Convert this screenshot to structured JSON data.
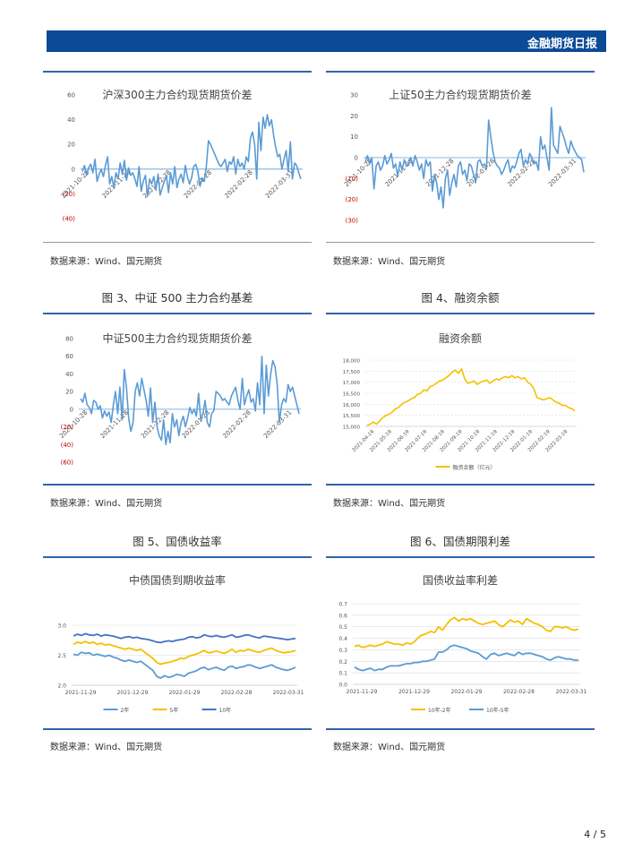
{
  "header": {
    "title": "金融期货日报"
  },
  "page_number": "4 / 5",
  "source_text": "数据来源：Wind、国元期货",
  "captions": {
    "fig3": "图 3、中证 500 主力合约基差",
    "fig4": "图 4、融资余额",
    "fig5": "图 5、国债收益率",
    "fig6": "图 6、国债期限利差"
  },
  "chart_data": [
    {
      "id": "c1",
      "type": "line",
      "title": "沪深300主力合约现货期货价差",
      "yticks": [
        "60",
        "40",
        "20",
        "0",
        "(20)",
        "(40)"
      ],
      "ylim": [
        -40,
        60
      ],
      "xticks": [
        "2021-10-29",
        "2021-11-28",
        "2021-12-28",
        "2022-01-28",
        "2022-02-28",
        "2022-03-31"
      ],
      "color": "#5b9bd5",
      "series": [
        {
          "values": [
            -2,
            3,
            -5,
            1,
            4,
            -3,
            8,
            -10,
            -4,
            0,
            -6,
            3,
            10,
            -12,
            -6,
            -15,
            -3,
            -8,
            5,
            -4,
            7,
            -9,
            1,
            -5,
            -3,
            -8,
            -14,
            2,
            -18,
            -10,
            -5,
            -22,
            -8,
            -12,
            -6,
            -17,
            -4,
            -21,
            -15,
            -10,
            -5,
            -19,
            -3,
            -12,
            2,
            -15,
            -8,
            -4,
            -11,
            3,
            -6,
            -12,
            -7,
            2,
            4,
            -2,
            -14,
            -7,
            -10,
            2,
            23,
            20,
            16,
            12,
            8,
            4,
            2,
            5,
            8,
            -2,
            6,
            4,
            10,
            -4,
            8,
            2,
            5,
            0,
            10,
            6,
            25,
            30,
            20,
            -8,
            38,
            15,
            42,
            33,
            44,
            35,
            40,
            28,
            18,
            10,
            12,
            0,
            8,
            15,
            -2,
            22,
            -8,
            5,
            3,
            -3,
            -8
          ]
        }
      ]
    },
    {
      "id": "c2",
      "type": "line",
      "title": "上证50主力合约现货期货价差",
      "yticks": [
        "30",
        "20",
        "10",
        "0",
        "(10)",
        "(20)",
        "(30)"
      ],
      "ylim": [
        -30,
        30
      ],
      "xticks": [
        "2021-10-29",
        "2021-11-28",
        "2021-12-28",
        "2022-01-28",
        "2022-02-28",
        "2022-03-31"
      ],
      "color": "#5b9bd5",
      "series": [
        {
          "values": [
            -2,
            1,
            -3,
            0,
            -15,
            -4,
            -2,
            -6,
            -4,
            1,
            -3,
            -1,
            2,
            -5,
            -3,
            -9,
            -2,
            -6,
            -1,
            -4,
            -3,
            0,
            -4,
            1,
            -2,
            -6,
            -3,
            -10,
            -1,
            -4,
            -2,
            -16,
            -8,
            -12,
            -20,
            -14,
            -24,
            -10,
            -6,
            -18,
            -12,
            -8,
            -14,
            -4,
            -2,
            -8,
            -6,
            -11,
            -3,
            -4,
            -8,
            -12,
            -2,
            -1,
            -4,
            -3,
            -5,
            18,
            10,
            3,
            -2,
            -4,
            -5,
            -8,
            -6,
            -3,
            -1,
            -7,
            -4,
            -5,
            -2,
            2,
            4,
            -4,
            -1,
            -3,
            2,
            0,
            -3,
            -2,
            -6,
            10,
            4,
            6,
            0,
            -6,
            24,
            6,
            4,
            2,
            15,
            12,
            9,
            5,
            2,
            8,
            5,
            3,
            1,
            0,
            -1,
            -7
          ]
        }
      ]
    },
    {
      "id": "c3",
      "type": "line",
      "title": "中证500主力合约现货期货价差",
      "yticks": [
        "80",
        "60",
        "40",
        "20",
        "0",
        "(20)",
        "(40)",
        "(60)"
      ],
      "ylim": [
        -60,
        80
      ],
      "xticks": [
        "2021-10-28",
        "2021-11-28",
        "2021-12-28",
        "2022-01-28",
        "2022-02-28",
        "2022-03-31"
      ],
      "color": "#5b9bd5",
      "series": [
        {
          "values": [
            12,
            8,
            18,
            5,
            2,
            -5,
            10,
            8,
            0,
            4,
            -10,
            -2,
            -8,
            -3,
            -15,
            5,
            20,
            -5,
            25,
            -12,
            45,
            25,
            -10,
            -25,
            -15,
            20,
            30,
            15,
            35,
            22,
            10,
            -8,
            24,
            -15,
            8,
            -20,
            -30,
            -35,
            -12,
            -40,
            -25,
            -38,
            -5,
            -20,
            -12,
            -30,
            -15,
            -8,
            -20,
            -10,
            2,
            -5,
            0,
            -8,
            18,
            -12,
            -5,
            10,
            -15,
            -20,
            -5,
            -2,
            20,
            18,
            15,
            10,
            12,
            8,
            5,
            15,
            20,
            25,
            10,
            0,
            35,
            5,
            15,
            22,
            8,
            12,
            -2,
            30,
            5,
            60,
            -5,
            50,
            15,
            40,
            55,
            48,
            28,
            -15,
            5,
            12,
            8,
            28,
            20,
            25,
            15,
            5,
            -5
          ]
        }
      ]
    },
    {
      "id": "c4",
      "type": "line",
      "title": "融资余额",
      "yticks": [
        "18,000",
        "17,500",
        "17,000",
        "16,500",
        "16,000",
        "15,500",
        "15,000"
      ],
      "ylim": [
        15000,
        18000
      ],
      "xticks": [
        "2021-04-19",
        "2021-05-19",
        "2021-06-19",
        "2021-07-19",
        "2021-08-19",
        "2021-09-19",
        "2021-10-19",
        "2021-11-19",
        "2021-12-19",
        "2022-01-19",
        "2022-02-19",
        "2022-03-19"
      ],
      "color": "#f5c000",
      "legend": "融资余额（亿元）",
      "series": [
        {
          "name": "融资余额（亿元）",
          "values": [
            15050,
            15100,
            15200,
            15100,
            15250,
            15400,
            15500,
            15550,
            15650,
            15800,
            15850,
            16000,
            16100,
            16150,
            16250,
            16300,
            16450,
            16500,
            16650,
            16600,
            16800,
            16850,
            16950,
            17050,
            17100,
            17200,
            17300,
            17450,
            17550,
            17400,
            17600,
            17150,
            16950,
            17000,
            17050,
            16900,
            17000,
            17050,
            17100,
            16950,
            17050,
            17150,
            17100,
            17200,
            17250,
            17200,
            17300,
            17200,
            17250,
            17150,
            17200,
            17000,
            16900,
            16700,
            16300,
            16250,
            16200,
            16250,
            16300,
            16200,
            16100,
            16050,
            15950,
            15950,
            15850,
            15800,
            15700
          ]
        }
      ]
    },
    {
      "id": "c5",
      "type": "line",
      "title": "中债国债到期收益率",
      "yticks": [
        "3.0",
        "2.5",
        "2.0"
      ],
      "ylim": [
        2.0,
        3.0
      ],
      "xticks": [
        "2021-11-29",
        "2021-12-29",
        "2022-01-29",
        "2022-02-28",
        "2022-03-31"
      ],
      "legend_names": [
        "2年",
        "5年",
        "10年"
      ],
      "series": [
        {
          "name": "2年",
          "color": "#5b9bd5",
          "values": [
            2.52,
            2.5,
            2.55,
            2.53,
            2.54,
            2.5,
            2.52,
            2.5,
            2.48,
            2.5,
            2.47,
            2.45,
            2.42,
            2.4,
            2.42,
            2.4,
            2.38,
            2.4,
            2.35,
            2.3,
            2.25,
            2.15,
            2.12,
            2.16,
            2.13,
            2.15,
            2.18,
            2.17,
            2.15,
            2.2,
            2.22,
            2.24,
            2.28,
            2.3,
            2.26,
            2.28,
            2.3,
            2.27,
            2.25,
            2.3,
            2.32,
            2.28,
            2.3,
            2.31,
            2.34,
            2.33,
            2.3,
            2.28,
            2.3,
            2.32,
            2.34,
            2.3,
            2.28,
            2.26,
            2.25,
            2.27,
            2.3
          ]
        },
        {
          "name": "5年",
          "color": "#f5c000",
          "values": [
            2.68,
            2.72,
            2.7,
            2.73,
            2.7,
            2.72,
            2.68,
            2.7,
            2.67,
            2.68,
            2.66,
            2.64,
            2.62,
            2.6,
            2.62,
            2.6,
            2.58,
            2.6,
            2.55,
            2.5,
            2.45,
            2.38,
            2.35,
            2.37,
            2.38,
            2.4,
            2.42,
            2.45,
            2.44,
            2.48,
            2.5,
            2.52,
            2.55,
            2.58,
            2.54,
            2.55,
            2.57,
            2.55,
            2.53,
            2.56,
            2.6,
            2.55,
            2.58,
            2.57,
            2.6,
            2.58,
            2.56,
            2.55,
            2.58,
            2.6,
            2.62,
            2.58,
            2.56,
            2.54,
            2.55,
            2.56,
            2.58
          ]
        },
        {
          "name": "10年",
          "color": "#4472c4",
          "values": [
            2.82,
            2.85,
            2.83,
            2.86,
            2.84,
            2.83,
            2.85,
            2.82,
            2.84,
            2.83,
            2.82,
            2.8,
            2.78,
            2.8,
            2.81,
            2.79,
            2.8,
            2.78,
            2.77,
            2.76,
            2.74,
            2.72,
            2.71,
            2.73,
            2.74,
            2.73,
            2.75,
            2.76,
            2.77,
            2.8,
            2.81,
            2.79,
            2.8,
            2.84,
            2.82,
            2.81,
            2.83,
            2.81,
            2.8,
            2.82,
            2.84,
            2.8,
            2.81,
            2.83,
            2.84,
            2.82,
            2.8,
            2.79,
            2.82,
            2.81,
            2.8,
            2.79,
            2.78,
            2.77,
            2.76,
            2.77,
            2.78
          ]
        }
      ]
    },
    {
      "id": "c6",
      "type": "line",
      "title": "国债收益率利差",
      "yticks": [
        "0.7",
        "0.6",
        "0.5",
        "0.4",
        "0.3",
        "0.2",
        "0.1",
        "0.0"
      ],
      "ylim": [
        0,
        0.7
      ],
      "xticks": [
        "2021-11-29",
        "2021-12-29",
        "2022-01-29",
        "2022-02-28",
        "2022-03-31"
      ],
      "legend_names": [
        "10年-2年",
        "10年-5年"
      ],
      "series": [
        {
          "name": "10年-2年",
          "color": "#f5c000",
          "values": [
            0.33,
            0.34,
            0.32,
            0.33,
            0.34,
            0.33,
            0.34,
            0.35,
            0.37,
            0.36,
            0.35,
            0.35,
            0.34,
            0.36,
            0.35,
            0.37,
            0.41,
            0.43,
            0.44,
            0.46,
            0.45,
            0.5,
            0.47,
            0.52,
            0.56,
            0.58,
            0.55,
            0.57,
            0.56,
            0.57,
            0.55,
            0.53,
            0.52,
            0.53,
            0.54,
            0.55,
            0.52,
            0.5,
            0.53,
            0.56,
            0.54,
            0.55,
            0.52,
            0.57,
            0.55,
            0.53,
            0.52,
            0.5,
            0.47,
            0.46,
            0.5,
            0.5,
            0.49,
            0.5,
            0.48,
            0.47,
            0.48
          ]
        },
        {
          "name": "10年-5年",
          "color": "#5b9bd5",
          "values": [
            0.15,
            0.13,
            0.12,
            0.13,
            0.14,
            0.12,
            0.13,
            0.13,
            0.15,
            0.16,
            0.16,
            0.16,
            0.17,
            0.18,
            0.18,
            0.19,
            0.19,
            0.2,
            0.2,
            0.21,
            0.22,
            0.28,
            0.28,
            0.3,
            0.33,
            0.34,
            0.33,
            0.32,
            0.31,
            0.29,
            0.28,
            0.27,
            0.24,
            0.22,
            0.26,
            0.27,
            0.25,
            0.26,
            0.27,
            0.26,
            0.25,
            0.28,
            0.26,
            0.27,
            0.27,
            0.26,
            0.25,
            0.24,
            0.22,
            0.21,
            0.23,
            0.24,
            0.23,
            0.22,
            0.22,
            0.21,
            0.21
          ]
        }
      ]
    }
  ]
}
